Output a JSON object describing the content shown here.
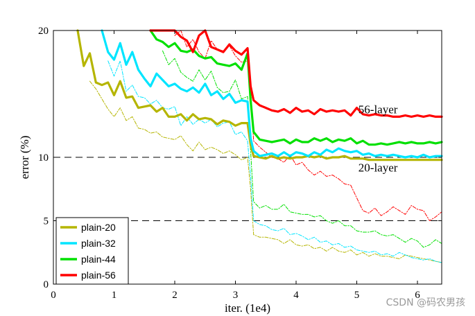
{
  "chart_data": {
    "type": "line",
    "xlabel": "iter. (1e4)",
    "ylabel": "error (%)",
    "xlim": [
      0,
      6.4
    ],
    "ylim": [
      0,
      20
    ],
    "x_ticks": [
      "0",
      "1",
      "2",
      "3",
      "4",
      "5",
      "6"
    ],
    "x_tick_values": [
      0,
      1,
      2,
      3,
      4,
      5,
      6
    ],
    "y_ticks": [
      "0",
      "5",
      "10",
      "20"
    ],
    "y_tick_values": [
      0,
      5,
      10,
      20
    ],
    "grid": "dashed horizontal lines at y = 5, 10, 20",
    "legend_position": "bottom-left",
    "annotations": [
      {
        "text": "56-layer",
        "x": 5.35,
        "y": 13.8
      },
      {
        "text": "20-layer",
        "x": 5.35,
        "y": 9.2
      }
    ],
    "series": [
      {
        "name": "plain-20",
        "color": "#b5b500",
        "style": "train",
        "x": [
          0.4,
          0.5,
          0.6,
          0.7,
          0.8,
          0.9,
          1.0,
          1.1,
          1.2,
          1.3,
          1.4,
          1.5,
          1.6,
          1.7,
          1.8,
          1.9,
          2.0,
          2.1,
          2.2,
          2.3,
          2.4,
          2.5,
          2.6,
          2.7,
          2.8,
          2.9,
          3.0,
          3.1,
          3.2,
          3.25,
          3.3,
          3.4,
          3.5,
          3.6,
          3.7,
          3.8,
          3.9,
          4.0,
          4.1,
          4.2,
          4.3,
          4.4,
          4.5,
          4.6,
          4.7,
          4.8,
          4.9,
          5.0,
          5.1,
          5.2,
          5.3,
          5.4,
          5.5,
          5.6,
          5.7,
          5.8,
          5.9,
          6.0,
          6.1,
          6.2,
          6.3,
          6.4
        ],
        "values": [
          20.0,
          17.2,
          18.2,
          15.9,
          15.7,
          15.9,
          14.9,
          16.0,
          14.7,
          14.8,
          13.9,
          14.0,
          14.1,
          13.6,
          13.9,
          13.2,
          13.2,
          13.4,
          12.9,
          13.4,
          13.0,
          13.1,
          13.0,
          12.6,
          12.9,
          12.8,
          12.5,
          12.7,
          12.7,
          11.0,
          10.1,
          10.0,
          9.9,
          10.1,
          9.9,
          10.0,
          9.9,
          10.0,
          10.0,
          10.1,
          10.0,
          10.1,
          9.9,
          10.0,
          10.0,
          10.1,
          9.9,
          9.9,
          9.9,
          9.8,
          9.8,
          9.8,
          9.8,
          9.8,
          9.8,
          9.8,
          9.8,
          9.8,
          9.8,
          9.8,
          9.8,
          9.8
        ]
      },
      {
        "name": "plain-32",
        "color": "#00e5ff",
        "style": "train",
        "x": [
          0.8,
          0.9,
          1.0,
          1.1,
          1.2,
          1.3,
          1.4,
          1.5,
          1.6,
          1.7,
          1.8,
          1.9,
          2.0,
          2.1,
          2.2,
          2.3,
          2.4,
          2.5,
          2.6,
          2.7,
          2.8,
          2.9,
          3.0,
          3.1,
          3.2,
          3.25,
          3.3,
          3.4,
          3.5,
          3.6,
          3.7,
          3.8,
          3.9,
          4.0,
          4.1,
          4.2,
          4.3,
          4.4,
          4.5,
          4.6,
          4.7,
          4.8,
          4.9,
          5.0,
          5.1,
          5.2,
          5.3,
          5.4,
          5.5,
          5.6,
          5.7,
          5.8,
          5.9,
          6.0,
          6.1,
          6.2,
          6.3,
          6.4
        ],
        "values": [
          20.0,
          18.3,
          17.7,
          19.0,
          17.3,
          18.3,
          16.9,
          16.2,
          15.6,
          16.6,
          16.1,
          15.6,
          15.8,
          15.4,
          15.2,
          15.5,
          15.1,
          15.8,
          14.9,
          15.2,
          14.6,
          15.0,
          14.3,
          14.5,
          14.4,
          11.5,
          10.5,
          10.1,
          10.2,
          10.3,
          10.1,
          10.4,
          10.1,
          10.4,
          10.3,
          10.1,
          10.4,
          10.2,
          10.6,
          10.4,
          10.7,
          10.5,
          10.4,
          10.5,
          10.2,
          10.3,
          10.1,
          10.2,
          10.1,
          10.2,
          10.1,
          10.0,
          10.1,
          10.0,
          10.2,
          10.0,
          10.1,
          10.1
        ]
      },
      {
        "name": "plain-44",
        "color": "#00e000",
        "style": "train",
        "x": [
          1.6,
          1.7,
          1.8,
          1.9,
          2.0,
          2.1,
          2.2,
          2.3,
          2.4,
          2.5,
          2.6,
          2.7,
          2.8,
          2.9,
          3.0,
          3.1,
          3.2,
          3.25,
          3.3,
          3.4,
          3.5,
          3.6,
          3.7,
          3.8,
          3.9,
          4.0,
          4.1,
          4.2,
          4.3,
          4.4,
          4.5,
          4.6,
          4.7,
          4.8,
          4.9,
          5.0,
          5.1,
          5.2,
          5.3,
          5.4,
          5.5,
          5.6,
          5.7,
          5.8,
          5.9,
          6.0,
          6.1,
          6.2,
          6.3,
          6.4
        ],
        "values": [
          20.0,
          19.3,
          19.1,
          18.7,
          19.0,
          18.4,
          18.3,
          18.5,
          18.0,
          17.8,
          17.9,
          17.4,
          17.3,
          17.2,
          17.4,
          16.9,
          18.2,
          14.5,
          12.0,
          11.4,
          11.3,
          11.2,
          11.3,
          11.4,
          11.1,
          11.4,
          11.2,
          11.2,
          11.5,
          11.3,
          11.5,
          11.2,
          11.4,
          11.3,
          11.5,
          11.1,
          11.3,
          11.0,
          11.0,
          11.1,
          11.0,
          11.1,
          11.2,
          11.1,
          11.2,
          11.1,
          11.1,
          11.2,
          11.1,
          11.2
        ]
      },
      {
        "name": "plain-56",
        "color": "#ff0000",
        "style": "train",
        "x": [
          1.6,
          1.7,
          1.8,
          1.9,
          2.0,
          2.1,
          2.2,
          2.3,
          2.4,
          2.5,
          2.6,
          2.7,
          2.8,
          2.9,
          3.0,
          3.1,
          3.2,
          3.25,
          3.3,
          3.4,
          3.5,
          3.6,
          3.7,
          3.8,
          3.9,
          4.0,
          4.1,
          4.2,
          4.3,
          4.4,
          4.5,
          4.6,
          4.7,
          4.8,
          4.9,
          5.0,
          5.1,
          5.2,
          5.3,
          5.4,
          5.5,
          5.6,
          5.7,
          5.8,
          5.9,
          6.0,
          6.1,
          6.2,
          6.3,
          6.4
        ],
        "values": [
          20.0,
          20.0,
          20.0,
          20.0,
          20.0,
          19.5,
          19.2,
          18.3,
          19.6,
          20.0,
          18.7,
          18.5,
          18.3,
          18.9,
          18.4,
          18.1,
          18.6,
          15.6,
          14.5,
          14.1,
          13.9,
          13.7,
          13.6,
          13.8,
          13.5,
          13.9,
          13.6,
          13.7,
          13.4,
          13.8,
          13.6,
          13.7,
          13.6,
          13.7,
          13.3,
          13.9,
          13.4,
          13.3,
          13.4,
          13.3,
          13.3,
          13.2,
          13.2,
          13.3,
          13.2,
          13.3,
          13.2,
          13.3,
          13.2,
          13.2
        ]
      },
      {
        "name": "",
        "color": "#b5b500",
        "style": "test",
        "x": [
          0.6,
          0.7,
          0.8,
          0.9,
          1.0,
          1.1,
          1.2,
          1.3,
          1.4,
          1.5,
          1.6,
          1.7,
          1.8,
          1.9,
          2.0,
          2.1,
          2.2,
          2.3,
          2.4,
          2.5,
          2.6,
          2.7,
          2.8,
          2.9,
          3.0,
          3.1,
          3.2,
          3.25,
          3.3,
          3.4,
          3.5,
          3.6,
          3.7,
          3.8,
          3.9,
          4.0,
          4.1,
          4.2,
          4.3,
          4.4,
          4.5,
          4.6,
          4.7,
          4.8,
          4.9,
          5.0,
          5.1,
          5.2,
          5.3,
          5.4,
          5.5,
          5.6,
          5.7,
          5.8,
          5.9,
          6.0,
          6.1,
          6.2,
          6.3,
          6.4
        ],
        "values": [
          16.0,
          15.4,
          14.6,
          13.8,
          13.2,
          13.9,
          12.9,
          13.2,
          12.3,
          12.2,
          11.9,
          12.0,
          11.6,
          11.5,
          11.4,
          11.7,
          11.0,
          10.5,
          11.2,
          10.6,
          10.8,
          10.6,
          10.3,
          10.5,
          10.2,
          9.8,
          10.0,
          7.5,
          3.9,
          3.7,
          3.7,
          3.6,
          3.5,
          3.2,
          3.5,
          3.1,
          3.0,
          3.1,
          2.8,
          2.9,
          2.6,
          2.9,
          2.6,
          2.5,
          2.7,
          2.3,
          2.5,
          2.2,
          2.4,
          2.2,
          2.2,
          2.1,
          2.0,
          2.3,
          2.2,
          2.1,
          2.0,
          1.9,
          1.8,
          1.7
        ]
      },
      {
        "name": "",
        "color": "#00e5ff",
        "style": "test",
        "x": [
          0.9,
          1.0,
          1.1,
          1.2,
          1.3,
          1.4,
          1.5,
          1.6,
          1.7,
          1.8,
          1.9,
          2.0,
          2.1,
          2.2,
          2.3,
          2.4,
          2.5,
          2.6,
          2.7,
          2.8,
          2.9,
          3.0,
          3.1,
          3.2,
          3.25,
          3.3,
          3.4,
          3.5,
          3.6,
          3.7,
          3.8,
          3.9,
          4.0,
          4.1,
          4.2,
          4.3,
          4.4,
          4.5,
          4.6,
          4.7,
          4.8,
          4.9,
          5.0,
          5.1,
          5.2,
          5.3,
          5.4,
          5.5,
          5.6,
          5.7,
          5.8,
          5.9,
          6.0,
          6.1,
          6.2,
          6.3,
          6.4
        ],
        "values": [
          17.6,
          16.4,
          17.6,
          15.2,
          15.7,
          14.8,
          14.7,
          14.2,
          14.5,
          13.9,
          13.8,
          14.0,
          12.5,
          13.2,
          12.6,
          13.0,
          12.7,
          13.0,
          12.4,
          12.7,
          12.8,
          11.8,
          12.0,
          11.3,
          8.5,
          5.0,
          4.7,
          4.6,
          4.3,
          4.2,
          4.4,
          3.9,
          4.0,
          3.8,
          3.5,
          3.7,
          3.3,
          3.4,
          3.1,
          3.2,
          2.9,
          3.0,
          2.7,
          2.6,
          2.5,
          2.6,
          2.3,
          2.4,
          2.2,
          2.5,
          2.3,
          2.1,
          2.0,
          1.9,
          2.0,
          1.8,
          1.7
        ]
      },
      {
        "name": "",
        "color": "#00e000",
        "style": "test",
        "x": [
          1.8,
          1.9,
          2.0,
          2.1,
          2.2,
          2.3,
          2.4,
          2.5,
          2.6,
          2.7,
          2.8,
          2.9,
          3.0,
          3.1,
          3.2,
          3.25,
          3.3,
          3.4,
          3.5,
          3.6,
          3.7,
          3.8,
          3.9,
          4.0,
          4.1,
          4.2,
          4.3,
          4.4,
          4.5,
          4.6,
          4.7,
          4.8,
          4.9,
          5.0,
          5.1,
          5.2,
          5.3,
          5.4,
          5.5,
          5.6,
          5.7,
          5.8,
          5.9,
          6.0,
          6.1,
          6.2,
          6.3,
          6.4
        ],
        "values": [
          18.4,
          17.3,
          17.8,
          16.7,
          16.3,
          16.0,
          16.9,
          16.1,
          16.8,
          15.5,
          15.1,
          15.2,
          16.1,
          14.6,
          14.8,
          10.5,
          6.5,
          6.0,
          6.2,
          5.9,
          5.9,
          6.3,
          5.7,
          5.6,
          5.5,
          5.5,
          5.3,
          5.4,
          5.0,
          4.8,
          5.0,
          4.6,
          4.6,
          4.2,
          4.1,
          4.1,
          4.2,
          3.9,
          3.8,
          3.9,
          3.6,
          3.3,
          3.6,
          3.4,
          2.9,
          3.1,
          3.5,
          3.2
        ]
      },
      {
        "name": "",
        "color": "#ff0000",
        "style": "test",
        "x": [
          2.0,
          2.1,
          2.2,
          2.3,
          2.4,
          2.5,
          2.6,
          2.7,
          2.8,
          2.9,
          3.0,
          3.1,
          3.2,
          3.25,
          3.3,
          3.4,
          3.5,
          3.6,
          3.7,
          3.8,
          3.9,
          4.0,
          4.1,
          4.2,
          4.3,
          4.4,
          4.5,
          4.6,
          4.7,
          4.8,
          4.9,
          5.0,
          5.1,
          5.2,
          5.3,
          5.4,
          5.5,
          5.6,
          5.7,
          5.8,
          5.9,
          6.0,
          6.1,
          6.2,
          6.3,
          6.4
        ],
        "values": [
          19.6,
          20.0,
          18.7,
          19.3,
          18.3,
          17.8,
          19.2,
          18.5,
          18.4,
          18.8,
          18.0,
          17.5,
          17.6,
          15.5,
          11.3,
          10.8,
          10.4,
          10.0,
          9.9,
          9.6,
          10.2,
          9.4,
          9.6,
          9.0,
          8.6,
          8.9,
          8.5,
          8.6,
          8.3,
          7.9,
          7.8,
          6.8,
          5.8,
          5.6,
          6.0,
          5.4,
          5.7,
          6.1,
          5.8,
          5.5,
          6.2,
          5.9,
          5.8,
          5.0,
          5.3,
          5.7
        ]
      }
    ]
  },
  "watermark": "CSDN @码农男孩"
}
